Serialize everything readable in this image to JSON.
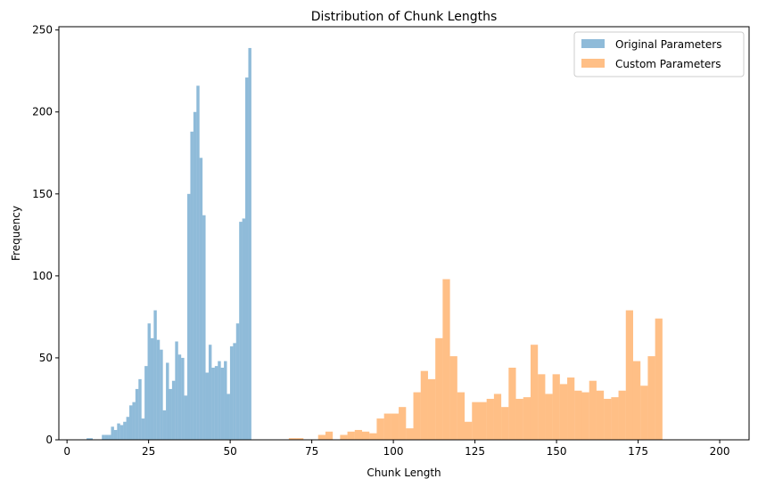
{
  "chart_data": {
    "type": "bar",
    "title": "Distribution of Chunk Lengths",
    "xlabel": "Chunk Length",
    "ylabel": "Frequency",
    "xlim": [
      -2.5,
      209
    ],
    "ylim": [
      0,
      252
    ],
    "xticks": [
      0,
      25,
      50,
      75,
      100,
      125,
      150,
      175,
      200
    ],
    "yticks": [
      0,
      50,
      100,
      150,
      200,
      250
    ],
    "legend_position": "top-right",
    "grid": false,
    "series": [
      {
        "name": "Original Parameters",
        "color": "#1f77b4",
        "alpha": 0.5,
        "bin_start": 6,
        "bin_width": 0.935,
        "values": [
          1,
          1,
          0,
          0,
          0,
          3,
          3,
          3,
          8,
          6,
          10,
          9,
          11,
          14,
          21,
          23,
          31,
          37,
          13,
          45,
          71,
          62,
          79,
          61,
          55,
          18,
          47,
          31,
          36,
          60,
          52,
          50,
          27,
          150,
          188,
          200,
          216,
          172,
          137,
          41,
          58,
          44,
          45,
          48,
          44,
          48,
          28,
          57,
          59,
          71,
          133,
          135,
          221,
          239
        ]
      },
      {
        "name": "Custom Parameters",
        "color": "#ff7f0e",
        "alpha": 0.5,
        "bin_start": 50,
        "bin_width": 2.245,
        "values": [
          0,
          0,
          0,
          0,
          0,
          0,
          0,
          0,
          1,
          1,
          0,
          0,
          3,
          5,
          0,
          3,
          5,
          6,
          5,
          4,
          13,
          16,
          16,
          20,
          7,
          29,
          42,
          37,
          62,
          98,
          51,
          29,
          11,
          23,
          23,
          25,
          28,
          20,
          44,
          25,
          26,
          58,
          40,
          28,
          40,
          34,
          38,
          30,
          29,
          36,
          30,
          25,
          26,
          30,
          79,
          48,
          33,
          51,
          74
        ]
      }
    ]
  }
}
